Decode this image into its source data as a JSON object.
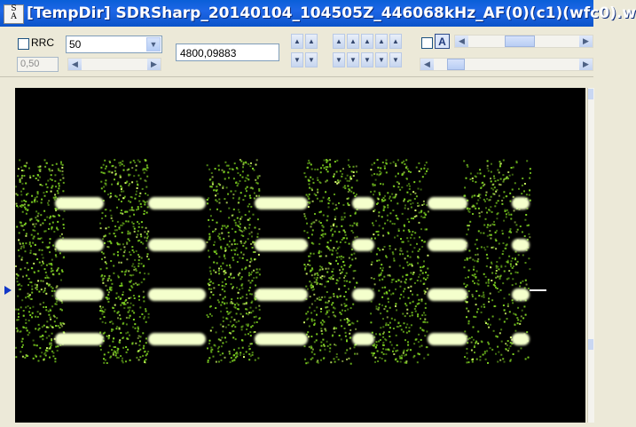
{
  "window": {
    "title": "[TempDir] SDRSharp_20140104_104505Z_446068kHz_AF(0)(c1)(wfc0).w",
    "app_icon": [
      "S",
      "A"
    ]
  },
  "toolbar": {
    "rrc_label": "RRC",
    "rrc_checked": false,
    "combo_value": "50",
    "disabled_value": "0,50",
    "frequency_value": "4800,09883",
    "text_a_label": "A"
  },
  "scope": {
    "background": "#000000",
    "signal_color": "#7ed321",
    "highlight_color": "#f4ffcc",
    "marker_color": "#1238c8"
  },
  "icons": {
    "spin_up": "up-arrow-icon",
    "spin_down": "down-arrow-icon",
    "scroll_left": "left-arrow-icon",
    "scroll_right": "right-arrow-icon",
    "dropdown": "chevron-down-icon"
  }
}
